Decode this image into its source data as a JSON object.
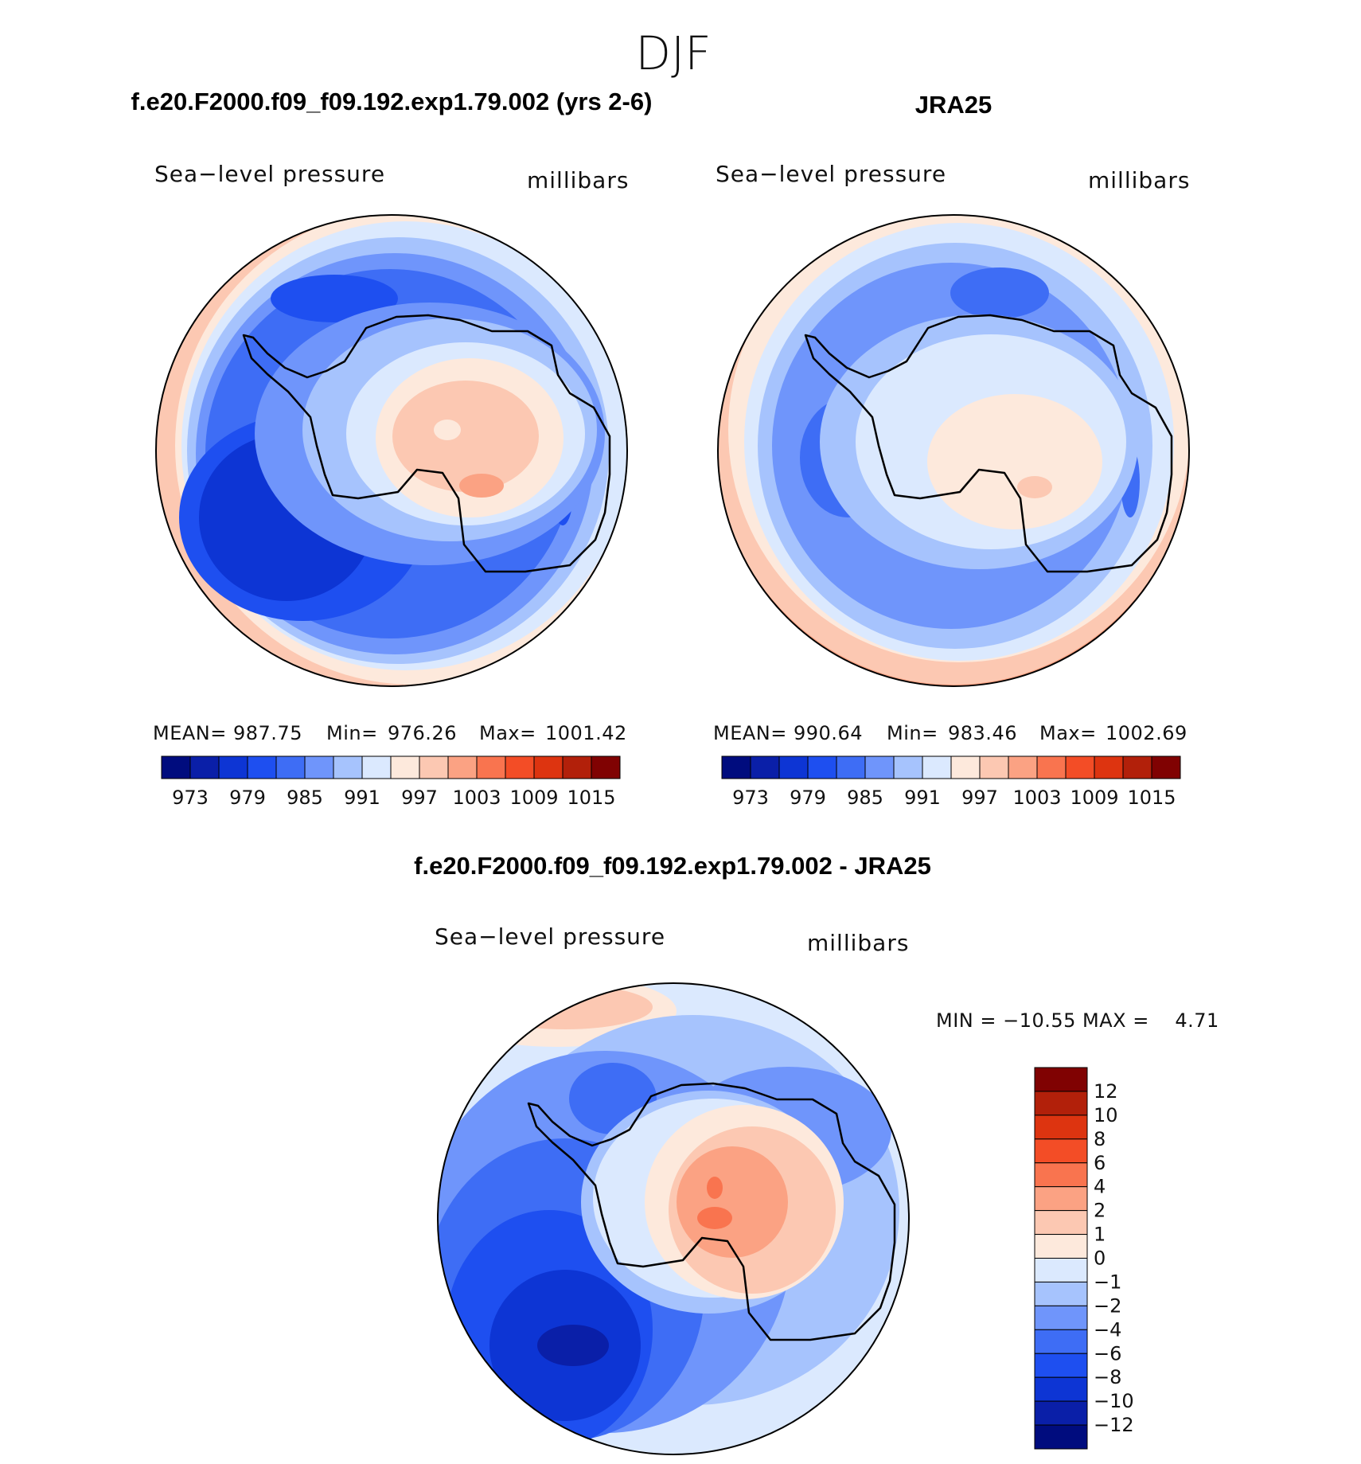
{
  "figure": {
    "season": "DJF",
    "panels": [
      {
        "id": "model",
        "heading": "f.e20.F2000.f09_f09.192.exp1.79.002 (yrs 2-6)",
        "left_label": "Sea−level pressure",
        "right_label": "millibars",
        "stats": {
          "mean_label": "MEAN=",
          "mean": "987.75",
          "min_label": "Min=",
          "min": "976.26",
          "max_label": "Max=",
          "max": "1001.42"
        },
        "colorbar_ticks": [
          "973",
          "979",
          "985",
          "991",
          "997",
          "1003",
          "1009",
          "1015"
        ]
      },
      {
        "id": "reanalysis",
        "heading": "JRA25",
        "left_label": "Sea−level pressure",
        "right_label": "millibars",
        "stats": {
          "mean_label": "MEAN=",
          "mean": "990.64",
          "min_label": "Min=",
          "min": "983.46",
          "max_label": "Max=",
          "max": "1002.69"
        },
        "colorbar_ticks": [
          "973",
          "979",
          "985",
          "991",
          "997",
          "1003",
          "1009",
          "1015"
        ]
      },
      {
        "id": "difference",
        "heading": "f.e20.F2000.f09_f09.192.exp1.79.002 - JRA25",
        "left_label": "Sea−level pressure",
        "right_label": "millibars",
        "minmax_text": "MIN = −10.55 MAX =    4.71",
        "colorbar_ticks": [
          "12",
          "10",
          "8",
          "6",
          "4",
          "2",
          "1",
          "0",
          "−1",
          "−2",
          "−4",
          "−6",
          "−8",
          "−10",
          "−12"
        ]
      }
    ]
  },
  "colors": {
    "scale16": [
      "#000c7e",
      "#0a1fa8",
      "#0d35d4",
      "#1e4ff0",
      "#3e6df5",
      "#6f95fb",
      "#a6c3fd",
      "#dbe9fe",
      "#fde9dc",
      "#fcc8b2",
      "#fba283",
      "#f9744f",
      "#f34d26",
      "#dd3410",
      "#b2200a",
      "#800202"
    ],
    "coastline": "#000000"
  }
}
